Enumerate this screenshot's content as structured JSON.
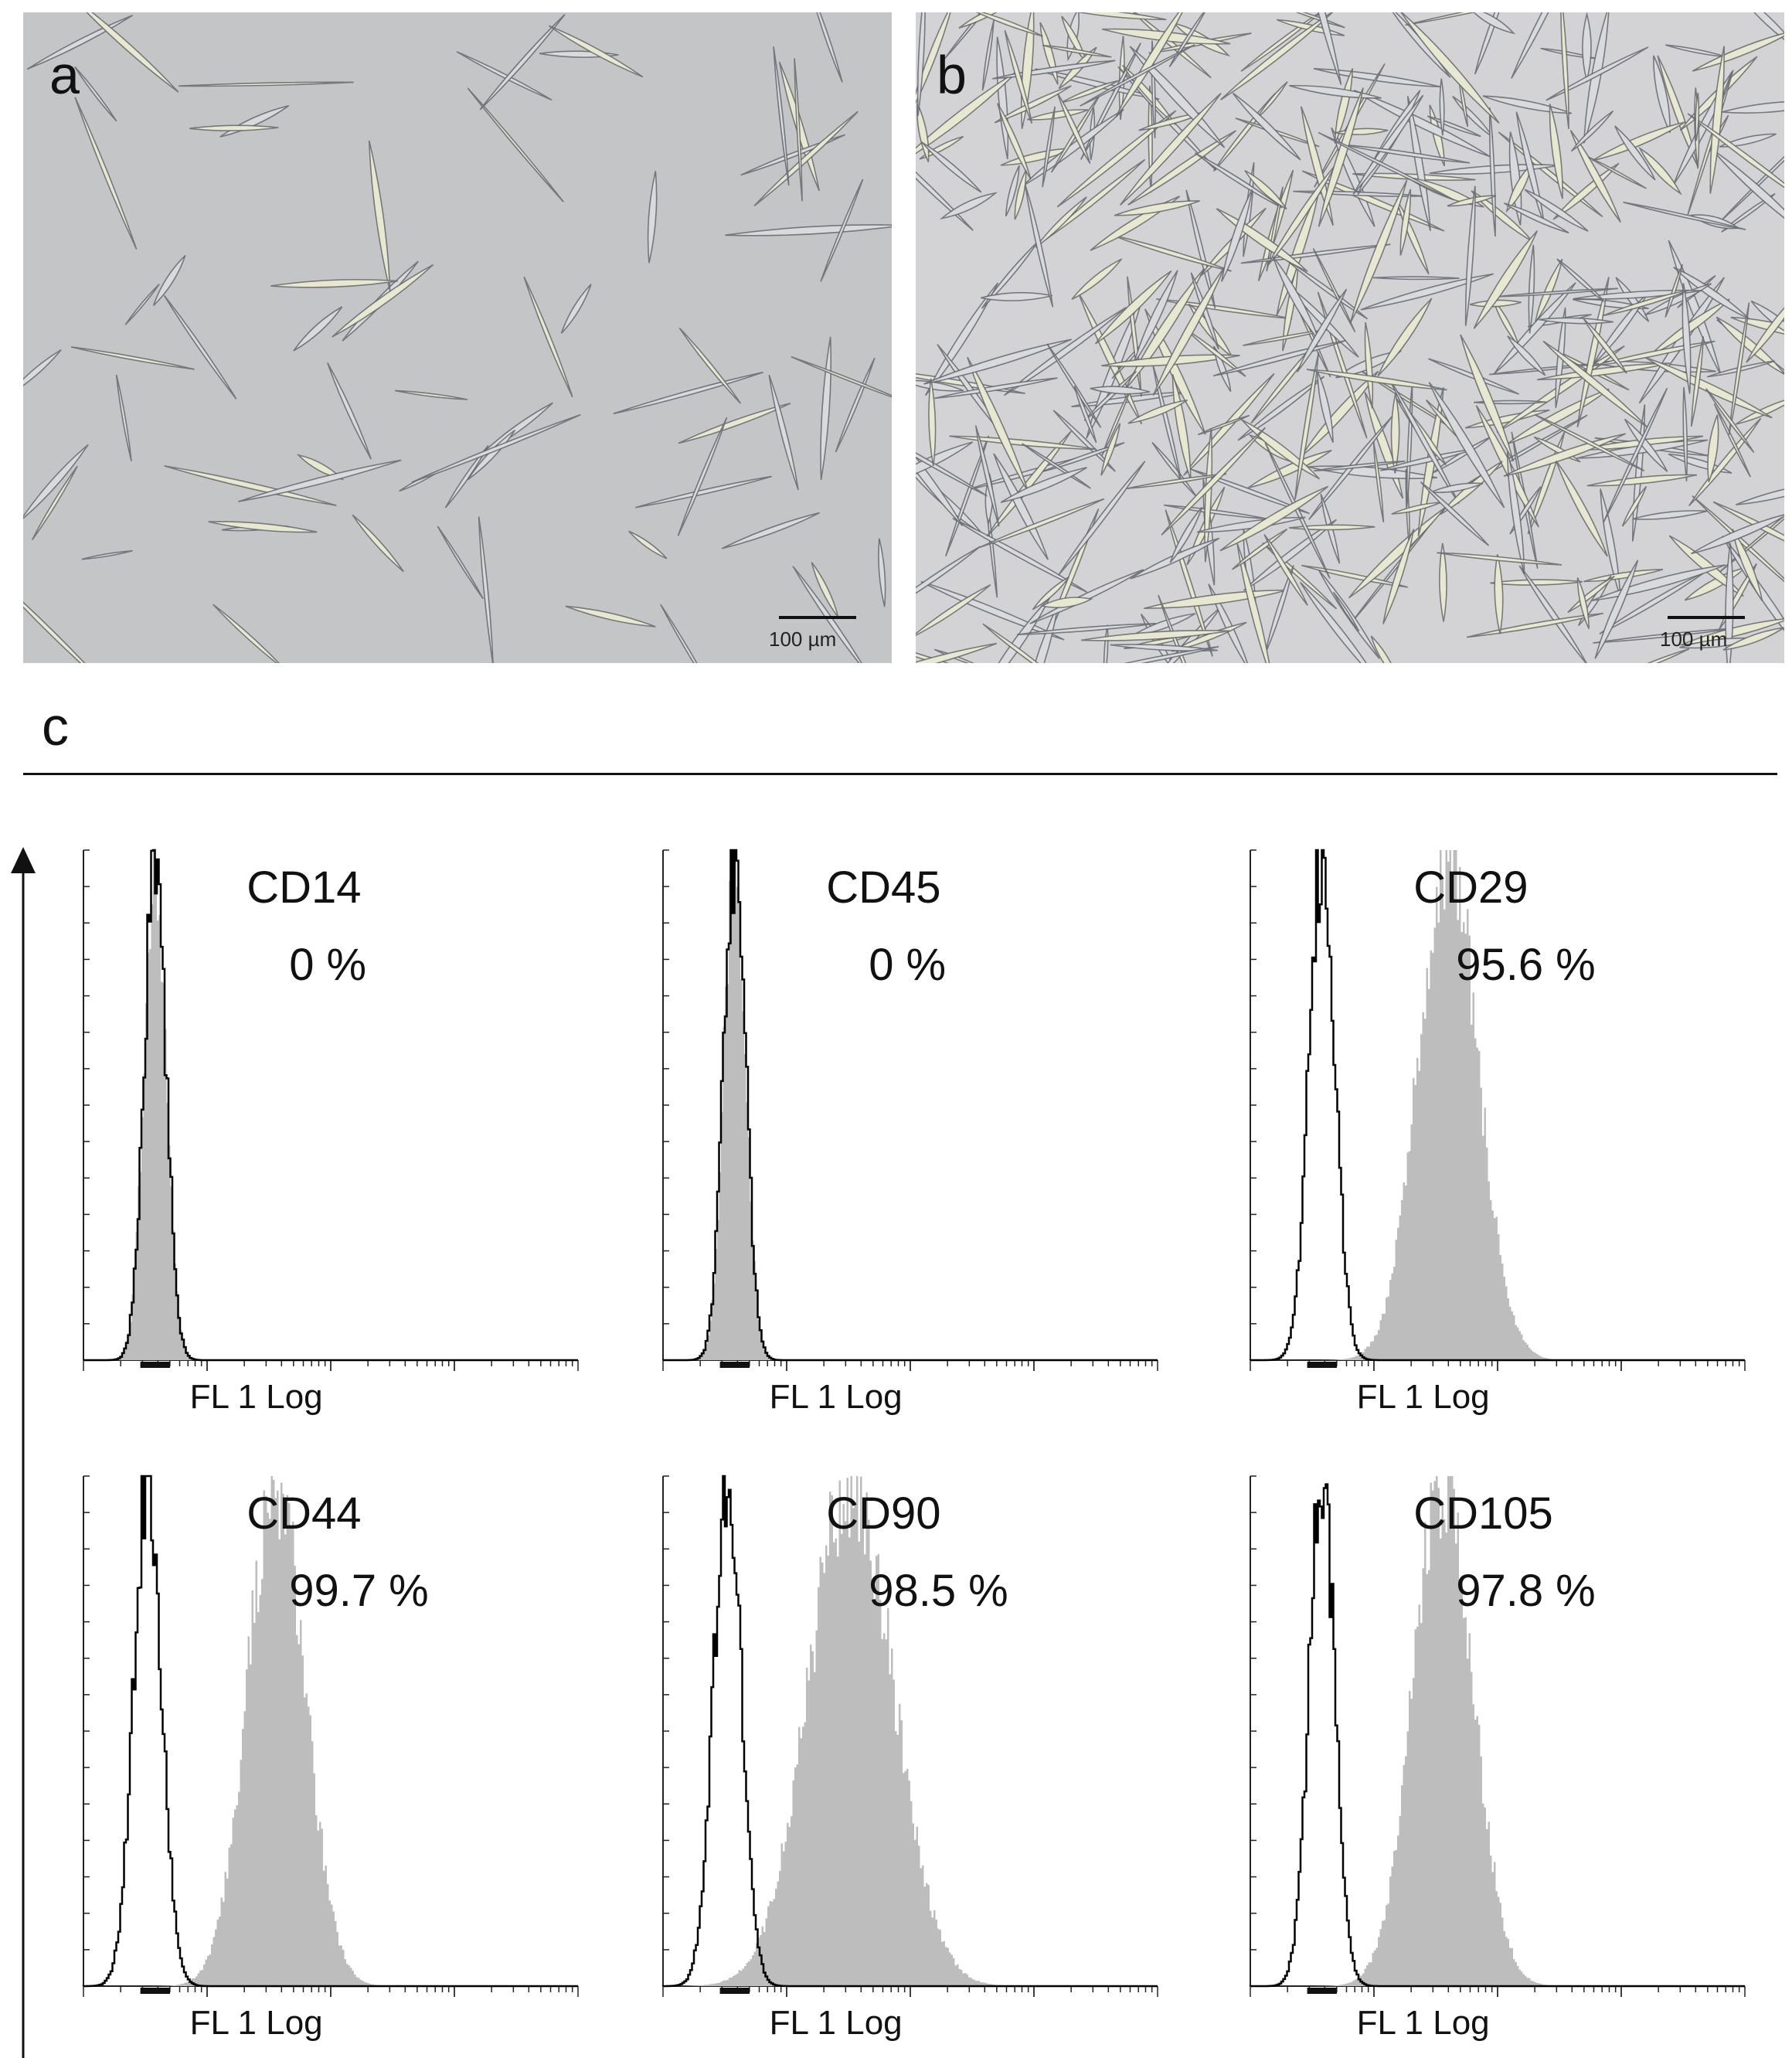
{
  "panels": {
    "a": {
      "letter": "a",
      "scale_label": "100 µm"
    },
    "b": {
      "letter": "b",
      "scale_label": "100 µm"
    },
    "c": {
      "letter": "c"
    }
  },
  "colors": {
    "isotype_outline": "#000000",
    "marker_fill": "#bdbdbd",
    "micro_a_bg": "#c3c5c7",
    "micro_b_bg": "#d3d3d5"
  },
  "chart_data": [
    {
      "type": "histogram",
      "marker": "CD14",
      "percent_label": "0 %",
      "xlabel": "FL 1 Log",
      "isotype_center": 0.145,
      "isotype_width": 0.022,
      "marker_center": 0.145,
      "marker_width": 0.022
    },
    {
      "type": "histogram",
      "marker": "CD45",
      "percent_label": "0 %",
      "xlabel": "FL 1 Log",
      "isotype_center": 0.145,
      "isotype_width": 0.022,
      "marker_center": 0.145,
      "marker_width": 0.022
    },
    {
      "type": "histogram",
      "marker": "CD29",
      "percent_label": "95.6 %",
      "xlabel": "FL 1 Log",
      "isotype_center": 0.145,
      "isotype_width": 0.026,
      "marker_center": 0.4,
      "marker_width": 0.06
    },
    {
      "type": "histogram",
      "marker": "CD44",
      "percent_label": "99.7 %",
      "xlabel": "FL 1 Log",
      "isotype_center": 0.13,
      "isotype_width": 0.028,
      "marker_center": 0.39,
      "marker_width": 0.058
    },
    {
      "type": "histogram",
      "marker": "CD90",
      "percent_label": "98.5 %",
      "xlabel": "FL 1 Log",
      "isotype_center": 0.13,
      "isotype_width": 0.028,
      "marker_center": 0.38,
      "marker_width": 0.085
    },
    {
      "type": "histogram",
      "marker": "CD105",
      "percent_label": "97.8 %",
      "xlabel": "FL 1 Log",
      "isotype_center": 0.145,
      "isotype_width": 0.026,
      "marker_center": 0.39,
      "marker_width": 0.06
    }
  ]
}
